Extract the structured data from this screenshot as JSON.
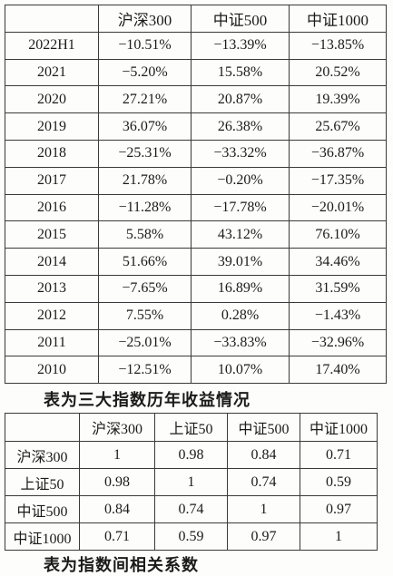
{
  "table1": {
    "header": [
      "",
      "沪深300",
      "中证500",
      "中证1000"
    ],
    "rows": [
      [
        "2022H1",
        "−10.51%",
        "−13.39%",
        "−13.85%"
      ],
      [
        "2021",
        "−5.20%",
        "15.58%",
        "20.52%"
      ],
      [
        "2020",
        "27.21%",
        "20.87%",
        "19.39%"
      ],
      [
        "2019",
        "36.07%",
        "26.38%",
        "25.67%"
      ],
      [
        "2018",
        "−25.31%",
        "−33.32%",
        "−36.87%"
      ],
      [
        "2017",
        "21.78%",
        "−0.20%",
        "−17.35%"
      ],
      [
        "2016",
        "−11.28%",
        "−17.78%",
        "−20.01%"
      ],
      [
        "2015",
        "5.58%",
        "43.12%",
        "76.10%"
      ],
      [
        "2014",
        "51.66%",
        "39.01%",
        "34.46%"
      ],
      [
        "2013",
        "−7.65%",
        "16.89%",
        "31.59%"
      ],
      [
        "2012",
        "7.55%",
        "0.28%",
        "−1.43%"
      ],
      [
        "2011",
        "−25.01%",
        "−33.83%",
        "−32.96%"
      ],
      [
        "2010",
        "−12.51%",
        "10.07%",
        "17.40%"
      ]
    ]
  },
  "caption1": "表为三大指数历年收益情况",
  "table2": {
    "header": [
      "",
      "沪深300",
      "上证50",
      "中证500",
      "中证1000"
    ],
    "rows": [
      [
        "沪深300",
        "1",
        "0.98",
        "0.84",
        "0.71"
      ],
      [
        "上证50",
        "0.98",
        "1",
        "0.74",
        "0.59"
      ],
      [
        "中证500",
        "0.84",
        "0.74",
        "1",
        "0.97"
      ],
      [
        "中证1000",
        "0.71",
        "0.59",
        "0.97",
        "1"
      ]
    ]
  },
  "caption2": "表为指数间相关系数"
}
